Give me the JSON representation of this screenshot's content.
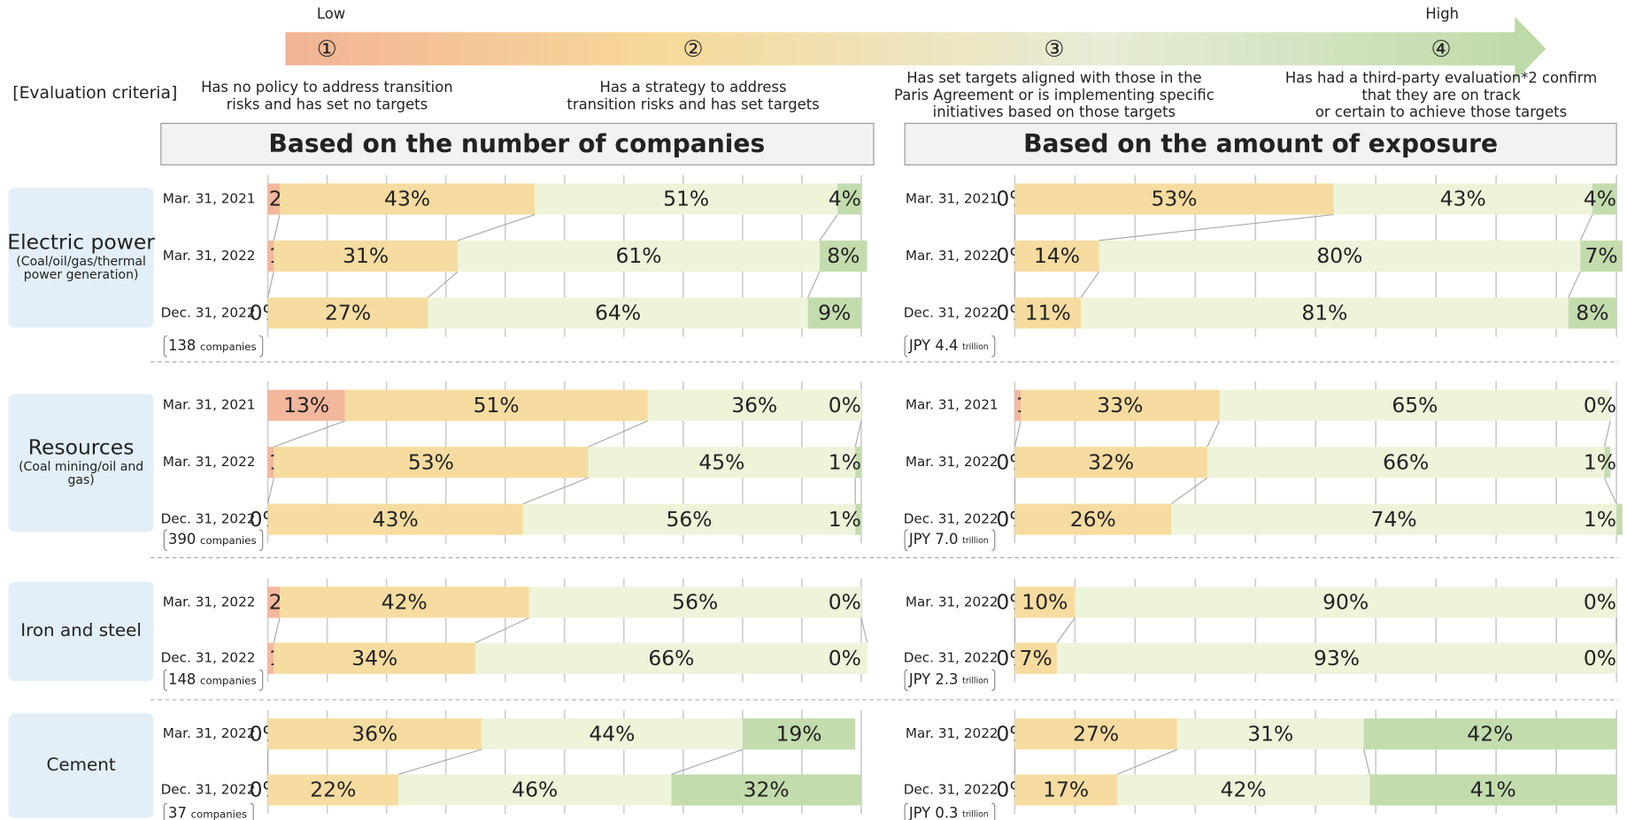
{
  "header": {
    "low": "Low",
    "high": "High",
    "criteria_label": "[Evaluation criteria]"
  },
  "criteria": [
    {
      "number": "①",
      "lines": [
        "Has no policy to address transition",
        "risks and has set no targets"
      ]
    },
    {
      "number": "②",
      "lines": [
        "Has a strategy to address",
        "transition risks and has set targets"
      ]
    },
    {
      "number": "③",
      "lines": [
        "Has set targets aligned with those in the",
        "Paris Agreement or is implementing specific",
        "initiatives based on those targets"
      ]
    },
    {
      "number": "④",
      "lines": [
        "Has had a third-party evaluation*2 confirm",
        "that they are on track",
        "or certain to achieve those targets"
      ]
    }
  ],
  "panels": [
    "Based on the number of companies",
    "Based on the amount of exposure"
  ],
  "sectors": [
    {
      "name": "Electric power",
      "sub": [
        "(Coal/oil/gas/thermal",
        "power generation)"
      ]
    },
    {
      "name": "Resources",
      "sub": [
        "(Coal mining/oil and",
        "gas)"
      ]
    },
    {
      "name": "Iron and steel",
      "sub": []
    },
    {
      "name": "Cement",
      "sub": []
    }
  ],
  "chart_data": [
    {
      "type": "bar",
      "orientation": "horizontal",
      "stacked": true,
      "categories": [
        "Mar. 31, 2021",
        "Mar. 31, 2022",
        "Dec. 31, 2022"
      ],
      "total": "138",
      "total_unit": "companies",
      "xlim": [
        0,
        100
      ],
      "xticks": [
        0,
        10,
        20,
        30,
        40,
        50,
        60,
        70,
        80,
        90,
        100
      ],
      "grid": true,
      "series": [
        {
          "color": "#f3b79c",
          "label_color": "#c0652e",
          "values": [
            2,
            1,
            0
          ],
          "value_labels": [
            "2%",
            "1%",
            "0%"
          ]
        },
        {
          "color": "#f6dca0",
          "label_color": "#9a7a1e",
          "values": [
            43,
            31,
            27
          ],
          "value_labels": [
            "43%",
            "31%",
            "27%"
          ]
        },
        {
          "color": "#eef4da",
          "label_color": "#6aa33c",
          "values": [
            51,
            61,
            64
          ],
          "value_labels": [
            "51%",
            "61%",
            "64%"
          ]
        },
        {
          "color": "#c3dcae",
          "label_color": "#4c7d2c",
          "values": [
            4,
            8,
            9
          ],
          "value_labels": [
            "4%",
            "8%",
            "9%"
          ]
        }
      ]
    },
    {
      "type": "bar",
      "orientation": "horizontal",
      "stacked": true,
      "categories": [
        "Mar. 31, 2021",
        "Mar. 31, 2022",
        "Dec. 31, 2022"
      ],
      "total": "JPY 4.4",
      "total_unit": "trillion",
      "xlim": [
        0,
        100
      ],
      "xticks": [
        0,
        10,
        20,
        30,
        40,
        50,
        60,
        70,
        80,
        90,
        100
      ],
      "grid": true,
      "series": [
        {
          "color": "#f3b79c",
          "label_color": "#c0652e",
          "values": [
            0,
            0,
            0
          ],
          "value_labels": [
            "0%",
            "0%",
            "0%"
          ]
        },
        {
          "color": "#f6dca0",
          "label_color": "#9a7a1e",
          "values": [
            53,
            14,
            11
          ],
          "value_labels": [
            "53%",
            "14%",
            "11%"
          ]
        },
        {
          "color": "#eef4da",
          "label_color": "#6aa33c",
          "values": [
            43,
            80,
            81
          ],
          "value_labels": [
            "43%",
            "80%",
            "81%"
          ]
        },
        {
          "color": "#c3dcae",
          "label_color": "#4c7d2c",
          "values": [
            4,
            7,
            8
          ],
          "value_labels": [
            "4%",
            "7%",
            "8%"
          ]
        }
      ]
    },
    {
      "type": "bar",
      "orientation": "horizontal",
      "stacked": true,
      "categories": [
        "Mar. 31, 2021",
        "Mar. 31, 2022",
        "Dec. 31, 2022"
      ],
      "total": "390",
      "total_unit": "companies",
      "xlim": [
        0,
        100
      ],
      "xticks": [
        0,
        10,
        20,
        30,
        40,
        50,
        60,
        70,
        80,
        90,
        100
      ],
      "grid": true,
      "series": [
        {
          "color": "#f3b79c",
          "label_color": "#c0652e",
          "values": [
            13,
            1,
            0
          ],
          "value_labels": [
            "13%",
            "1%",
            "0%"
          ]
        },
        {
          "color": "#f6dca0",
          "label_color": "#8a6a12",
          "values": [
            51,
            53,
            43
          ],
          "value_labels": [
            "51%",
            "53%",
            "43%"
          ]
        },
        {
          "color": "#eef4da",
          "label_color": "#5f9a30",
          "values": [
            36,
            45,
            56
          ],
          "value_labels": [
            "36%",
            "45%",
            "56%"
          ]
        },
        {
          "color": "#c3dcae",
          "label_color": "#3f6f1f",
          "values": [
            0,
            1,
            1
          ],
          "value_labels": [
            "0%",
            "1%",
            "1%"
          ]
        }
      ]
    },
    {
      "type": "bar",
      "orientation": "horizontal",
      "stacked": true,
      "categories": [
        "Mar. 31, 2021",
        "Mar. 31, 2022",
        "Dec. 31, 2022"
      ],
      "total": "JPY 7.0",
      "total_unit": "trillion",
      "xlim": [
        0,
        100
      ],
      "xticks": [
        0,
        10,
        20,
        30,
        40,
        50,
        60,
        70,
        80,
        90,
        100
      ],
      "grid": true,
      "series": [
        {
          "color": "#f3b79c",
          "label_color": "#c0652e",
          "values": [
            1,
            0,
            0
          ],
          "value_labels": [
            "1%",
            "0%",
            "0%"
          ]
        },
        {
          "color": "#f6dca0",
          "label_color": "#8a6a12",
          "values": [
            33,
            32,
            26
          ],
          "value_labels": [
            "33%",
            "32%",
            "26%"
          ]
        },
        {
          "color": "#eef4da",
          "label_color": "#5f9a30",
          "values": [
            65,
            66,
            74
          ],
          "value_labels": [
            "65%",
            "66%",
            "74%"
          ]
        },
        {
          "color": "#c3dcae",
          "label_color": "#3f6f1f",
          "values": [
            0,
            1,
            1
          ],
          "value_labels": [
            "0%",
            "1%",
            "1%"
          ]
        }
      ]
    },
    {
      "type": "bar",
      "orientation": "horizontal",
      "stacked": true,
      "categories": [
        "Mar. 31, 2022",
        "Dec. 31, 2022"
      ],
      "total": "148",
      "total_unit": "companies",
      "xlim": [
        0,
        100
      ],
      "xticks": [
        0,
        10,
        20,
        30,
        40,
        50,
        60,
        70,
        80,
        90,
        100
      ],
      "grid": true,
      "series": [
        {
          "color": "#f3b79c",
          "label_color": "#c0652e",
          "values": [
            2,
            1
          ],
          "value_labels": [
            "2%",
            "1%"
          ]
        },
        {
          "color": "#f6dca0",
          "label_color": "#8a6a12",
          "values": [
            42,
            34
          ],
          "value_labels": [
            "42%",
            "34%"
          ]
        },
        {
          "color": "#eef4da",
          "label_color": "#5f9a30",
          "values": [
            56,
            66
          ],
          "value_labels": [
            "56%",
            "66%"
          ]
        },
        {
          "color": "#c3dcae",
          "label_color": "#3f6f1f",
          "values": [
            0,
            0
          ],
          "value_labels": [
            "0%",
            "0%"
          ]
        }
      ]
    },
    {
      "type": "bar",
      "orientation": "horizontal",
      "stacked": true,
      "categories": [
        "Mar. 31, 2022",
        "Dec. 31, 2022"
      ],
      "total": "JPY 2.3",
      "total_unit": "trillion",
      "xlim": [
        0,
        100
      ],
      "xticks": [
        0,
        10,
        20,
        30,
        40,
        50,
        60,
        70,
        80,
        90,
        100
      ],
      "grid": true,
      "series": [
        {
          "color": "#f3b79c",
          "label_color": "#c0652e",
          "values": [
            0,
            0
          ],
          "value_labels": [
            "0%",
            "0%"
          ]
        },
        {
          "color": "#f6dca0",
          "label_color": "#8a6a12",
          "values": [
            10,
            7
          ],
          "value_labels": [
            "10%",
            "7%"
          ]
        },
        {
          "color": "#eef4da",
          "label_color": "#5f9a30",
          "values": [
            90,
            93
          ],
          "value_labels": [
            "90%",
            "93%"
          ]
        },
        {
          "color": "#c3dcae",
          "label_color": "#3f6f1f",
          "values": [
            0,
            0
          ],
          "value_labels": [
            "0%",
            "0%"
          ]
        }
      ]
    },
    {
      "type": "bar",
      "orientation": "horizontal",
      "stacked": true,
      "categories": [
        "Mar. 31, 2022",
        "Dec. 31, 2022"
      ],
      "total": "37",
      "total_unit": "companies",
      "xlim": [
        0,
        100
      ],
      "xticks": [
        0,
        10,
        20,
        30,
        40,
        50,
        60,
        70,
        80,
        90,
        100
      ],
      "grid": true,
      "series": [
        {
          "color": "#f3b79c",
          "label_color": "#c0652e",
          "values": [
            0,
            0
          ],
          "value_labels": [
            "0%",
            "0%"
          ]
        },
        {
          "color": "#f6dca0",
          "label_color": "#8a6a12",
          "values": [
            36,
            22
          ],
          "value_labels": [
            "36%",
            "22%"
          ]
        },
        {
          "color": "#eef4da",
          "label_color": "#5f9a30",
          "values": [
            44,
            46
          ],
          "value_labels": [
            "44%",
            "46%"
          ]
        },
        {
          "color": "#c3dcae",
          "label_color": "#3f5a2a",
          "values": [
            19,
            32
          ],
          "value_labels": [
            "19%",
            "32%"
          ]
        }
      ]
    },
    {
      "type": "bar",
      "orientation": "horizontal",
      "stacked": true,
      "categories": [
        "Mar. 31, 2022",
        "Dec. 31, 2022"
      ],
      "total": "JPY 0.3",
      "total_unit": "trillion",
      "xlim": [
        0,
        100
      ],
      "xticks": [
        0,
        10,
        20,
        30,
        40,
        50,
        60,
        70,
        80,
        90,
        100
      ],
      "grid": true,
      "series": [
        {
          "color": "#f3b79c",
          "label_color": "#c0652e",
          "values": [
            0,
            0
          ],
          "value_labels": [
            "0%",
            "0%"
          ]
        },
        {
          "color": "#f6dca0",
          "label_color": "#8a6a12",
          "values": [
            27,
            17
          ],
          "value_labels": [
            "27%",
            "17%"
          ]
        },
        {
          "color": "#eef4da",
          "label_color": "#5f9a30",
          "values": [
            31,
            42
          ],
          "value_labels": [
            "31%",
            "42%"
          ]
        },
        {
          "color": "#c3dcae",
          "label_color": "#3f5a2a",
          "values": [
            42,
            41
          ],
          "value_labels": [
            "42%",
            "41%"
          ]
        }
      ]
    }
  ]
}
